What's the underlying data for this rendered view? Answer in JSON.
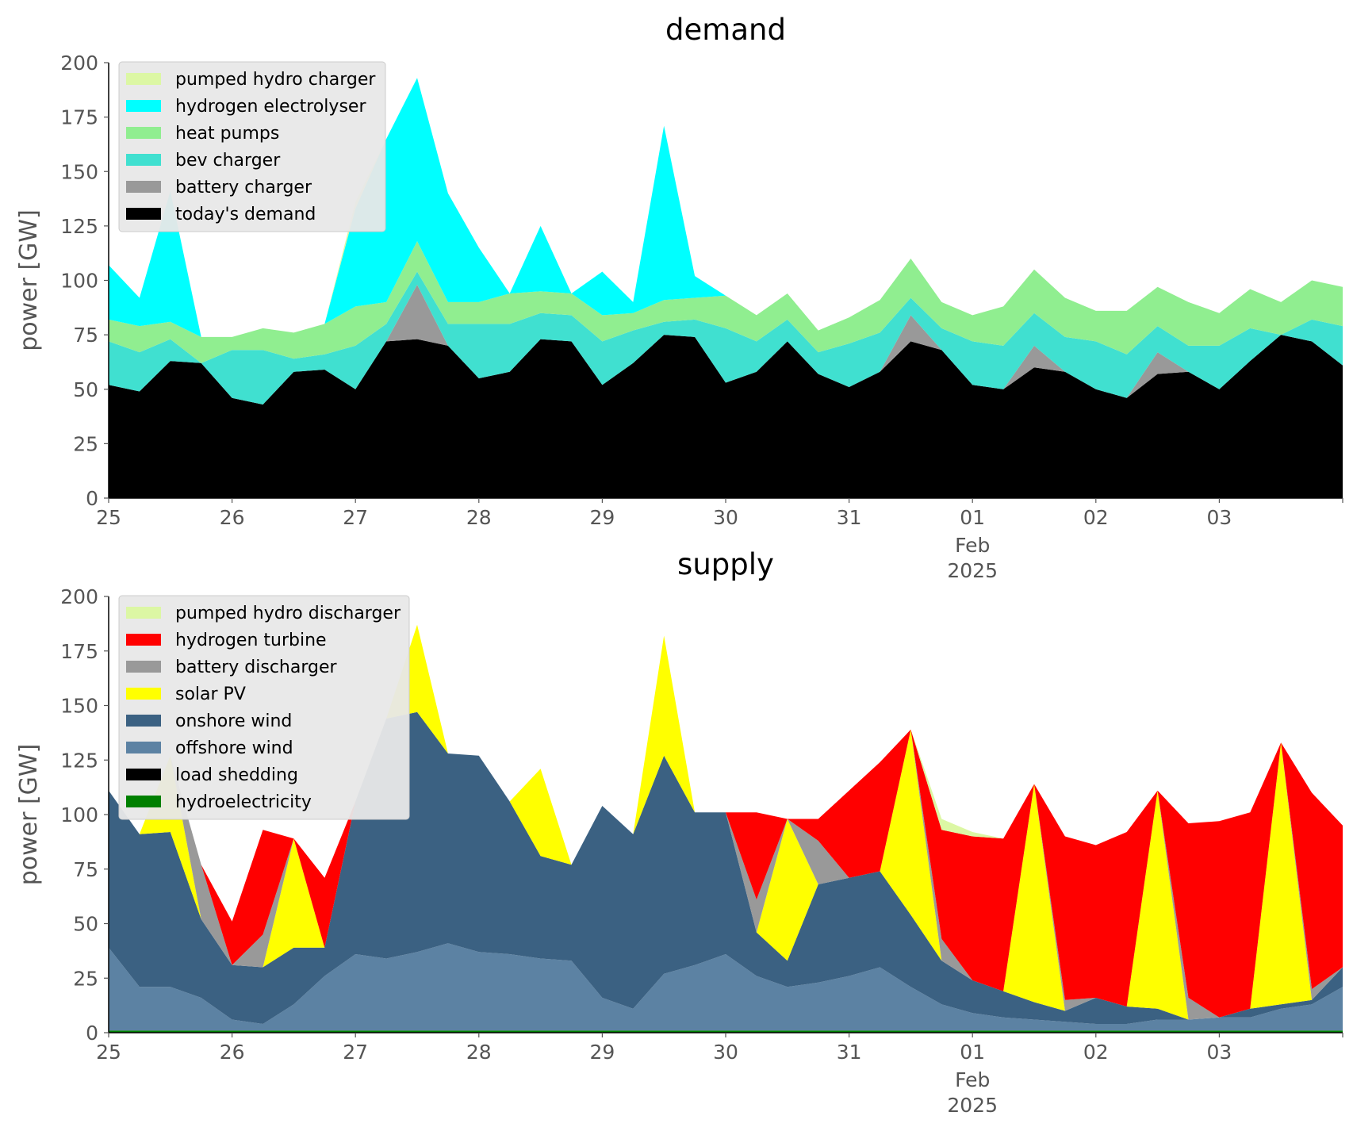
{
  "chart_data": [
    {
      "type": "area",
      "title": "demand",
      "ylabel": "power [GW]",
      "xlabel": "",
      "ylim": [
        0,
        200
      ],
      "yticks": [
        0,
        25,
        50,
        75,
        100,
        125,
        150,
        175,
        200
      ],
      "xlim": [
        "2025-01-25T00:00",
        "2025-02-04T00:00"
      ],
      "xticks": [
        {
          "date": "2025-01-25",
          "label": "25"
        },
        {
          "date": "2025-01-26",
          "label": "26"
        },
        {
          "date": "2025-01-27",
          "label": "27"
        },
        {
          "date": "2025-01-28",
          "label": "28"
        },
        {
          "date": "2025-01-29",
          "label": "29"
        },
        {
          "date": "2025-01-30",
          "label": "30"
        },
        {
          "date": "2025-01-31",
          "label": "31"
        },
        {
          "date": "2025-02-01",
          "label": "01",
          "sub": [
            "Feb",
            "2025"
          ]
        },
        {
          "date": "2025-02-02",
          "label": "02"
        },
        {
          "date": "2025-02-03",
          "label": "03"
        }
      ],
      "grid": false,
      "stacked": true,
      "legend_position": "top-left",
      "x": [
        "2025-01-25T00:00",
        "2025-01-25T06:00",
        "2025-01-25T12:00",
        "2025-01-25T18:00",
        "2025-01-26T00:00",
        "2025-01-26T06:00",
        "2025-01-26T12:00",
        "2025-01-26T18:00",
        "2025-01-27T00:00",
        "2025-01-27T06:00",
        "2025-01-27T12:00",
        "2025-01-27T18:00",
        "2025-01-28T00:00",
        "2025-01-28T06:00",
        "2025-01-28T12:00",
        "2025-01-28T18:00",
        "2025-01-29T00:00",
        "2025-01-29T06:00",
        "2025-01-29T12:00",
        "2025-01-29T18:00",
        "2025-01-30T00:00",
        "2025-01-30T06:00",
        "2025-01-30T12:00",
        "2025-01-30T18:00",
        "2025-01-31T00:00",
        "2025-01-31T06:00",
        "2025-01-31T12:00",
        "2025-01-31T18:00",
        "2025-02-01T00:00",
        "2025-02-01T06:00",
        "2025-02-01T12:00",
        "2025-02-01T18:00",
        "2025-02-02T00:00",
        "2025-02-02T06:00",
        "2025-02-02T12:00",
        "2025-02-02T18:00",
        "2025-02-03T00:00",
        "2025-02-03T06:00",
        "2025-02-03T12:00",
        "2025-02-03T18:00",
        "2025-02-04T00:00"
      ],
      "series": [
        {
          "name": "today's demand",
          "color": "#000000",
          "values": [
            52,
            49,
            63,
            62,
            46,
            43,
            58,
            59,
            50,
            72,
            73,
            70,
            55,
            58,
            73,
            72,
            52,
            62,
            75,
            74,
            53,
            58,
            72,
            57,
            51,
            58,
            72,
            68,
            52,
            50,
            60,
            58,
            50,
            46,
            57,
            58,
            50,
            63,
            75,
            72,
            61
          ]
        },
        {
          "name": "battery charger",
          "color": "#999999",
          "values": [
            0,
            0,
            0,
            0,
            0,
            0,
            0,
            0,
            0,
            0,
            25,
            0,
            0,
            0,
            0,
            0,
            0,
            0,
            0,
            0,
            0,
            0,
            0,
            0,
            0,
            0,
            12,
            0,
            0,
            0,
            10,
            0,
            0,
            0,
            10,
            0,
            0,
            0,
            0,
            0,
            0
          ]
        },
        {
          "name": "bev charger",
          "color": "#40e0d0",
          "values": [
            20,
            18,
            10,
            0,
            22,
            25,
            6,
            7,
            20,
            8,
            6,
            10,
            25,
            22,
            12,
            12,
            20,
            15,
            6,
            8,
            25,
            14,
            10,
            10,
            20,
            18,
            8,
            10,
            20,
            20,
            15,
            16,
            22,
            20,
            12,
            12,
            20,
            15,
            0,
            10,
            18
          ]
        },
        {
          "name": "heat pumps",
          "color": "#90ee90",
          "values": [
            10,
            12,
            8,
            12,
            6,
            10,
            12,
            14,
            18,
            10,
            14,
            10,
            10,
            14,
            10,
            10,
            12,
            8,
            10,
            10,
            15,
            12,
            12,
            10,
            12,
            15,
            18,
            12,
            12,
            18,
            20,
            18,
            14,
            20,
            18,
            20,
            15,
            18,
            15,
            18,
            18
          ]
        },
        {
          "name": "hydrogen electrolyser",
          "color": "#00ffff",
          "values": [
            25,
            13,
            60,
            0,
            0,
            0,
            0,
            0,
            45,
            75,
            75,
            50,
            25,
            0,
            30,
            0,
            20,
            5,
            80,
            10,
            0,
            0,
            0,
            0,
            0,
            0,
            0,
            0,
            0,
            0,
            0,
            0,
            0,
            0,
            0,
            0,
            0,
            0,
            0,
            0,
            0
          ]
        },
        {
          "name": "pumped hydro charger",
          "color": "#dcf7a4",
          "values": [
            0,
            0,
            0,
            0,
            0,
            0,
            0,
            0,
            3,
            0,
            0,
            0,
            0,
            0,
            0,
            0,
            0,
            0,
            0,
            0,
            0,
            0,
            0,
            0,
            0,
            0,
            0,
            0,
            0,
            0,
            0,
            0,
            0,
            0,
            0,
            0,
            0,
            0,
            0,
            0,
            0
          ]
        }
      ]
    },
    {
      "type": "area",
      "title": "supply",
      "ylabel": "power [GW]",
      "xlabel": "",
      "ylim": [
        0,
        200
      ],
      "yticks": [
        0,
        25,
        50,
        75,
        100,
        125,
        150,
        175,
        200
      ],
      "xlim": [
        "2025-01-25T00:00",
        "2025-02-04T00:00"
      ],
      "xticks": [
        {
          "date": "2025-01-25",
          "label": "25"
        },
        {
          "date": "2025-01-26",
          "label": "26"
        },
        {
          "date": "2025-01-27",
          "label": "27"
        },
        {
          "date": "2025-01-28",
          "label": "28"
        },
        {
          "date": "2025-01-29",
          "label": "29"
        },
        {
          "date": "2025-01-30",
          "label": "30"
        },
        {
          "date": "2025-01-31",
          "label": "31"
        },
        {
          "date": "2025-02-01",
          "label": "01",
          "sub": [
            "Feb",
            "2025"
          ]
        },
        {
          "date": "2025-02-02",
          "label": "02"
        },
        {
          "date": "2025-02-03",
          "label": "03"
        }
      ],
      "grid": false,
      "stacked": true,
      "legend_position": "top-left",
      "x": [
        "2025-01-25T00:00",
        "2025-01-25T06:00",
        "2025-01-25T12:00",
        "2025-01-25T18:00",
        "2025-01-26T00:00",
        "2025-01-26T06:00",
        "2025-01-26T12:00",
        "2025-01-26T18:00",
        "2025-01-27T00:00",
        "2025-01-27T06:00",
        "2025-01-27T12:00",
        "2025-01-27T18:00",
        "2025-01-28T00:00",
        "2025-01-28T06:00",
        "2025-01-28T12:00",
        "2025-01-28T18:00",
        "2025-01-29T00:00",
        "2025-01-29T06:00",
        "2025-01-29T12:00",
        "2025-01-29T18:00",
        "2025-01-30T00:00",
        "2025-01-30T06:00",
        "2025-01-30T12:00",
        "2025-01-30T18:00",
        "2025-01-31T00:00",
        "2025-01-31T06:00",
        "2025-01-31T12:00",
        "2025-01-31T18:00",
        "2025-02-01T00:00",
        "2025-02-01T06:00",
        "2025-02-01T12:00",
        "2025-02-01T18:00",
        "2025-02-02T00:00",
        "2025-02-02T06:00",
        "2025-02-02T12:00",
        "2025-02-02T18:00",
        "2025-02-03T00:00",
        "2025-02-03T06:00",
        "2025-02-03T12:00",
        "2025-02-03T18:00",
        "2025-02-04T00:00"
      ],
      "series": [
        {
          "name": "hydroelectricity",
          "color": "#008000",
          "values": [
            1,
            1,
            1,
            1,
            1,
            1,
            1,
            1,
            1,
            1,
            1,
            1,
            1,
            1,
            1,
            1,
            1,
            1,
            1,
            1,
            1,
            1,
            1,
            1,
            1,
            1,
            1,
            1,
            1,
            1,
            1,
            1,
            1,
            1,
            1,
            1,
            1,
            1,
            1,
            1,
            1
          ]
        },
        {
          "name": "load shedding",
          "color": "#000000",
          "values": [
            0,
            0,
            0,
            0,
            0,
            0,
            0,
            0,
            0,
            0,
            0,
            0,
            0,
            0,
            0,
            0,
            0,
            0,
            0,
            0,
            0,
            0,
            0,
            0,
            0,
            0,
            0,
            0,
            0,
            0,
            0,
            0,
            0,
            0,
            0,
            0,
            0,
            0,
            0,
            0,
            0
          ]
        },
        {
          "name": "offshore wind",
          "color": "#5c82a3",
          "values": [
            38,
            20,
            20,
            15,
            5,
            3,
            12,
            25,
            35,
            33,
            36,
            40,
            36,
            35,
            33,
            32,
            15,
            10,
            26,
            30,
            35,
            25,
            20,
            22,
            25,
            29,
            20,
            12,
            8,
            6,
            5,
            4,
            3,
            3,
            5,
            5,
            6,
            6,
            10,
            12,
            20
          ]
        },
        {
          "name": "onshore wind",
          "color": "#3b6182",
          "values": [
            72,
            70,
            71,
            36,
            25,
            26,
            26,
            13,
            70,
            110,
            110,
            87,
            90,
            70,
            47,
            44,
            88,
            80,
            100,
            70,
            65,
            20,
            12,
            45,
            45,
            44,
            33,
            20,
            15,
            12,
            8,
            5,
            12,
            8,
            5,
            0,
            0,
            4,
            2,
            2,
            9
          ]
        },
        {
          "name": "solar PV",
          "color": "#ffff00",
          "values": [
            0,
            0,
            35,
            0,
            0,
            0,
            50,
            0,
            0,
            0,
            40,
            0,
            0,
            0,
            40,
            0,
            0,
            0,
            55,
            0,
            0,
            0,
            65,
            0,
            0,
            0,
            85,
            0,
            0,
            0,
            100,
            0,
            0,
            0,
            100,
            0,
            0,
            0,
            120,
            0,
            0
          ]
        },
        {
          "name": "battery discharger",
          "color": "#999999",
          "values": [
            0,
            0,
            0,
            25,
            0,
            15,
            0,
            0,
            0,
            0,
            0,
            0,
            0,
            0,
            0,
            0,
            0,
            0,
            0,
            0,
            0,
            15,
            0,
            20,
            0,
            0,
            0,
            10,
            0,
            0,
            0,
            5,
            0,
            0,
            0,
            10,
            0,
            0,
            0,
            5,
            0
          ]
        },
        {
          "name": "hydrogen turbine",
          "color": "#ff0000",
          "values": [
            0,
            0,
            0,
            0,
            20,
            48,
            0,
            32,
            0,
            0,
            0,
            0,
            0,
            0,
            0,
            0,
            0,
            0,
            0,
            0,
            0,
            40,
            0,
            10,
            40,
            50,
            0,
            50,
            66,
            70,
            0,
            75,
            70,
            80,
            0,
            80,
            90,
            90,
            0,
            90,
            65
          ]
        },
        {
          "name": "pumped hydro discharger",
          "color": "#dcf7a4",
          "values": [
            0,
            0,
            0,
            0,
            0,
            0,
            0,
            0,
            0,
            0,
            0,
            0,
            0,
            0,
            0,
            0,
            0,
            0,
            0,
            0,
            0,
            0,
            0,
            0,
            0,
            0,
            0,
            5,
            2,
            0,
            0,
            0,
            0,
            0,
            0,
            0,
            0,
            0,
            0,
            0,
            0
          ]
        }
      ]
    }
  ]
}
